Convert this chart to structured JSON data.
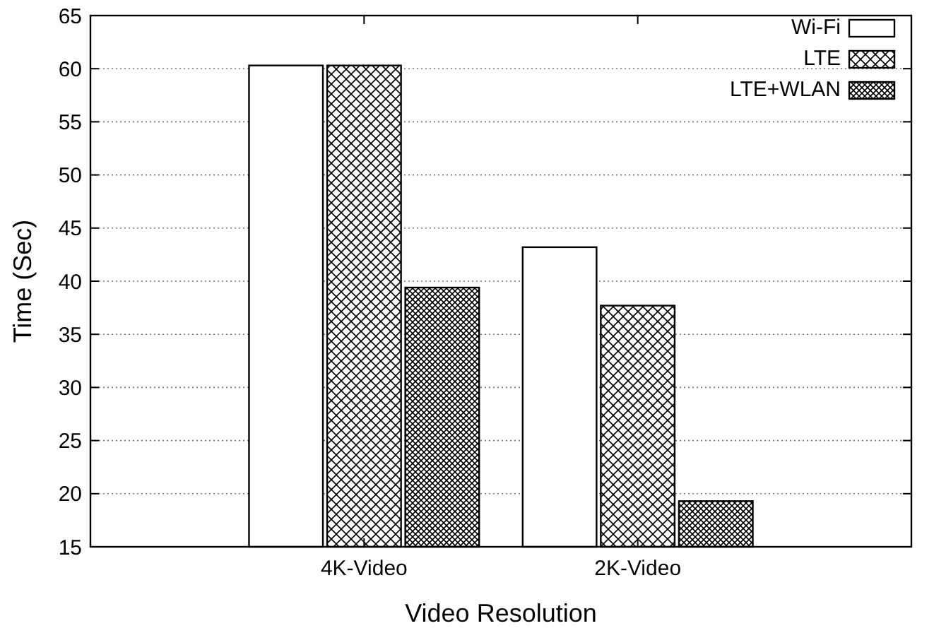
{
  "chart_data": {
    "type": "bar",
    "xlabel": "Video Resolution",
    "ylabel": "Time (Sec)",
    "categories": [
      "4K-Video",
      "2K-Video"
    ],
    "series": [
      {
        "name": "Wi-Fi",
        "color": "#ffffff",
        "values": [
          60.3,
          43.2
        ]
      },
      {
        "name": "LTE",
        "color": "#000000",
        "values": [
          60.3,
          37.7
        ]
      },
      {
        "name": "LTE+WLAN",
        "color": "#000000",
        "values": [
          39.4,
          19.3
        ]
      }
    ],
    "ylim": [
      15,
      65
    ],
    "yticks": [
      15,
      20,
      25,
      30,
      35,
      40,
      45,
      50,
      55,
      60,
      65
    ],
    "grid": "y",
    "legend": "top right"
  }
}
